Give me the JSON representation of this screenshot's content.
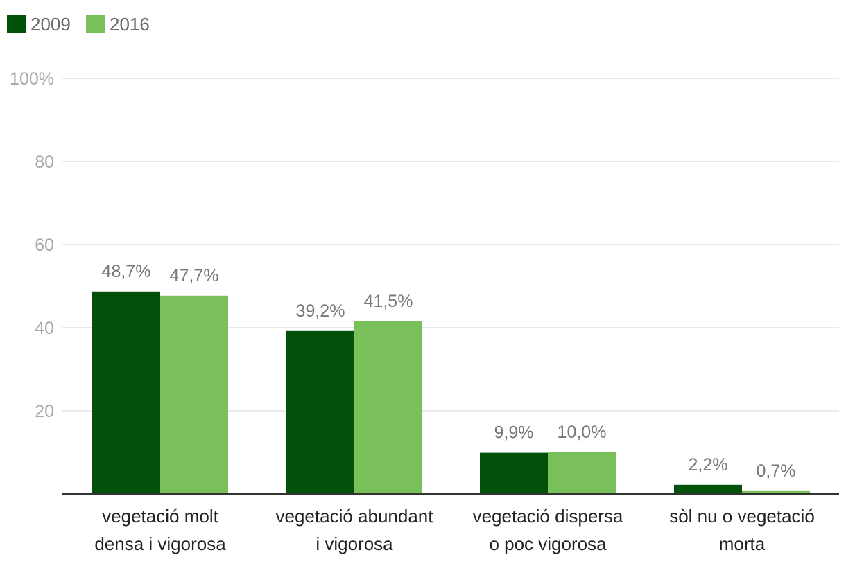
{
  "chart_data": {
    "type": "bar",
    "categories": [
      [
        "vegetació molt",
        "densa i vigorosa"
      ],
      [
        "vegetació abundant",
        "i vigorosa"
      ],
      [
        "vegetació dispersa",
        "o poc vigorosa"
      ],
      [
        "sòl nu o vegetació",
        "morta"
      ]
    ],
    "series": [
      {
        "name": "2009",
        "color": "#02500a",
        "values": [
          48.7,
          39.2,
          9.9,
          2.2
        ],
        "labels": [
          "48,7%",
          "39,2%",
          "9,9%",
          "2,2%"
        ]
      },
      {
        "name": "2016",
        "color": "#79c05a",
        "values": [
          47.7,
          41.5,
          10.0,
          0.7
        ],
        "labels": [
          "47,7%",
          "41,5%",
          "10,0%",
          "0,7%"
        ]
      }
    ],
    "yticks": [
      {
        "value": 0,
        "label": ""
      },
      {
        "value": 20,
        "label": "20"
      },
      {
        "value": 40,
        "label": "40"
      },
      {
        "value": 60,
        "label": "60"
      },
      {
        "value": 80,
        "label": "80"
      },
      {
        "value": 100,
        "label": "100%"
      }
    ],
    "ylim": [
      0,
      100
    ],
    "grid": true,
    "legend_position": "top-left",
    "title": "",
    "xlabel": "",
    "ylabel": ""
  }
}
